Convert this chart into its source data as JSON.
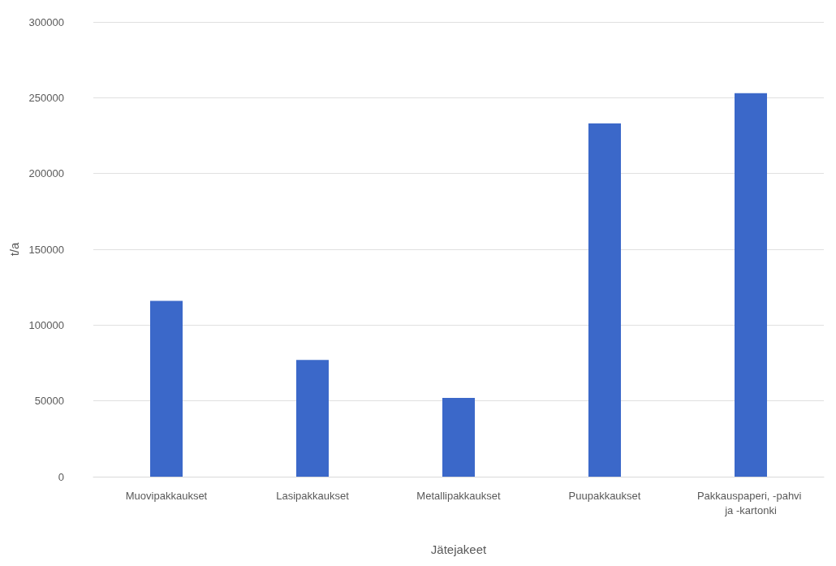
{
  "chart_data": {
    "type": "bar",
    "xlabel": "Jätejakeet",
    "ylabel": "t/a",
    "categories": [
      "Muovipakkaukset",
      "Lasipakkaukset",
      "Metallipakkaukset",
      "Puupakkaukset",
      "Pakkauspaperi, -pahvi ja -kartonki"
    ],
    "values": [
      116000,
      77000,
      52000,
      233000,
      253000
    ],
    "color": "#3b68c9",
    "ylim": [
      0,
      300000
    ],
    "yticks": [
      0,
      50000,
      100000,
      150000,
      200000,
      250000,
      300000
    ],
    "grid": "y"
  }
}
